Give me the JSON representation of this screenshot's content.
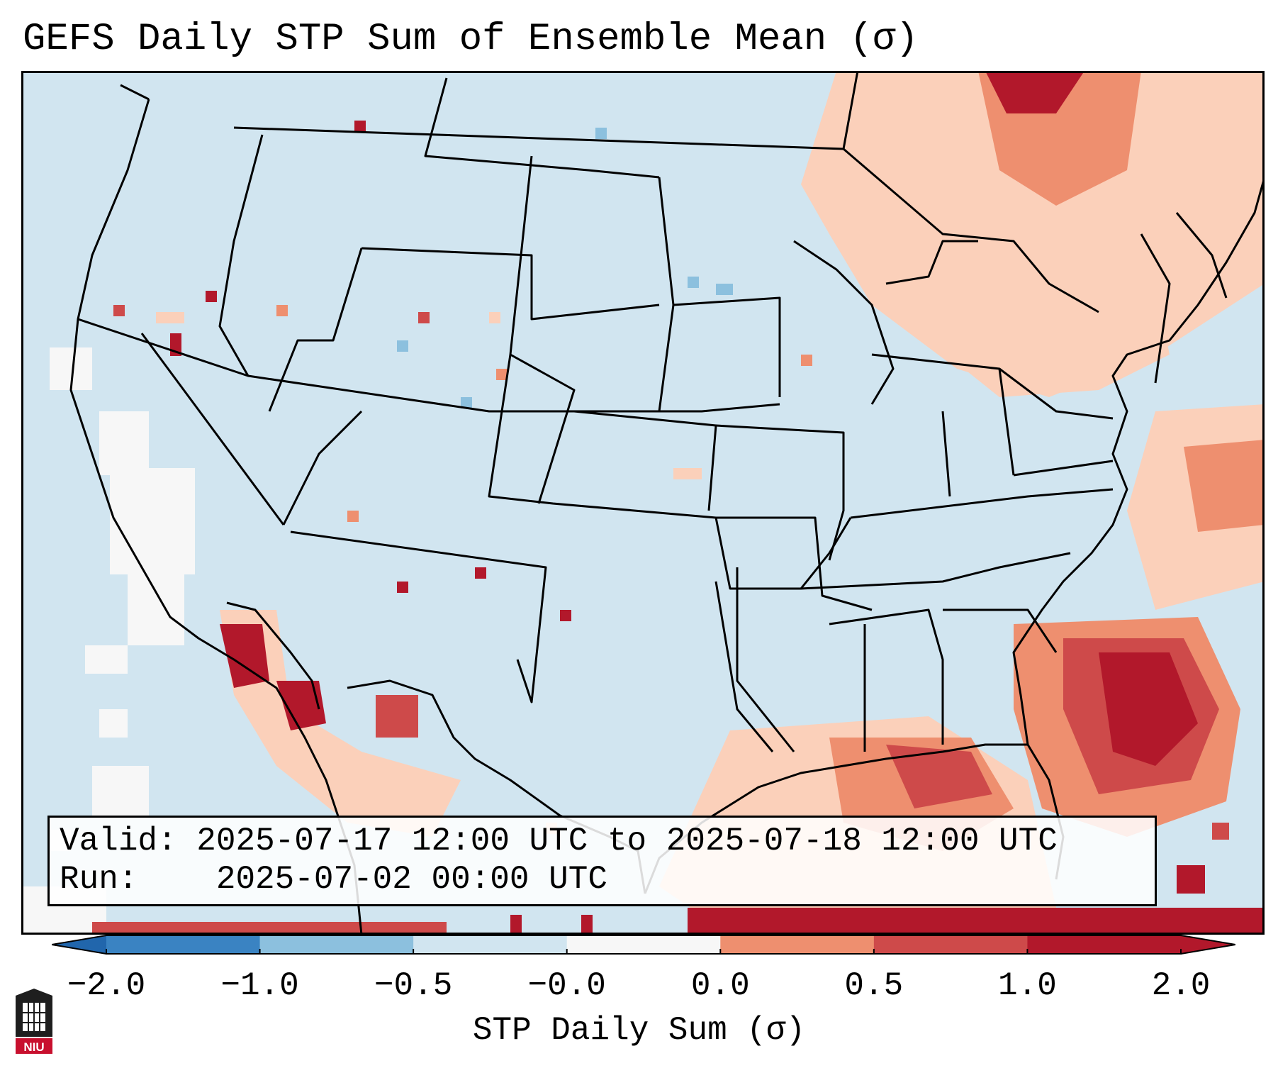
{
  "title": "GEFS Daily STP Sum of Ensemble Mean (σ)",
  "info": {
    "valid_label": "Valid:",
    "valid_value": "2025-07-17 12:00 UTC to 2025-07-18 12:00 UTC",
    "run_label": "Run:",
    "run_value": "2025-07-02 00:00 UTC"
  },
  "colorbar": {
    "label": "STP Daily Sum (σ)",
    "ticks": [
      "−2.0",
      "−1.0",
      "−0.5",
      "−0.0",
      "0.0",
      "0.5",
      "1.0",
      "2.0"
    ],
    "colors": [
      "#3a83c2",
      "#8cc0de",
      "#d1e5f0",
      "#f7f7f7",
      "#fbd0ba",
      "#ee8f6f",
      "#ce4a4a",
      "#b2182b"
    ],
    "extend_low_color": "#2166ac",
    "extend_high_color": "#b2182b"
  },
  "map": {
    "background_color": "#d1e5f0",
    "land_outline_color": "#000000",
    "region": "CONUS"
  },
  "logo": {
    "text": "NIU",
    "icon": "university-seal-icon"
  }
}
